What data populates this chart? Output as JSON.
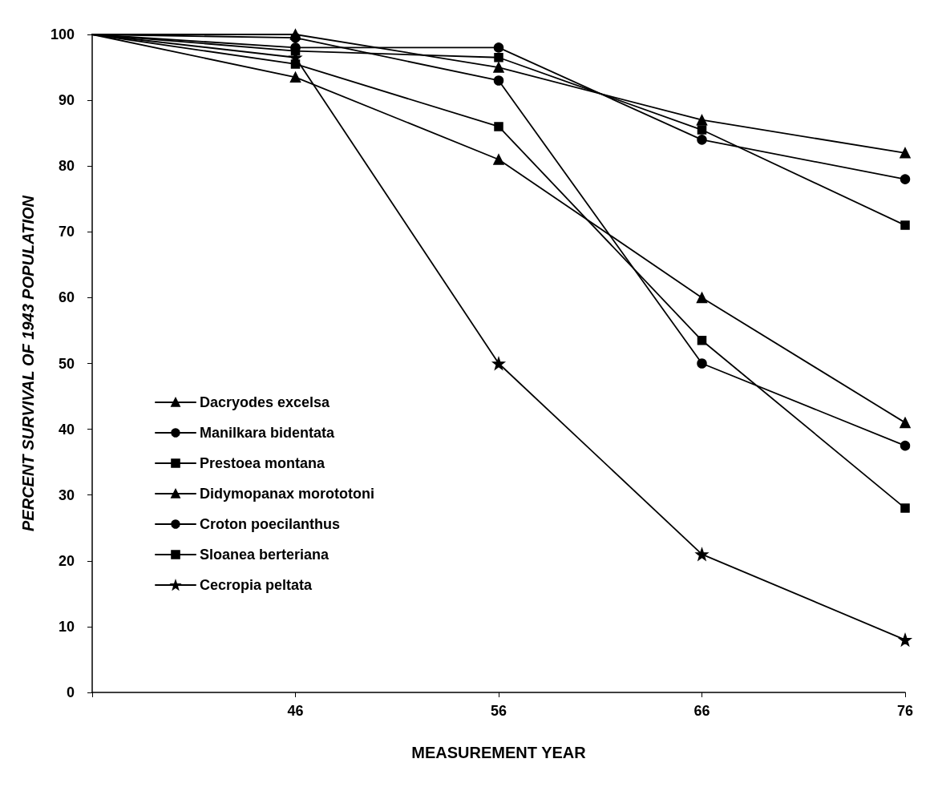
{
  "chart_data": {
    "type": "line",
    "xlabel": "MEASUREMENT YEAR",
    "ylabel": "PERCENT SURVIVAL OF 1943 POPULATION",
    "categories": [
      null,
      "46",
      "56",
      "66",
      "76"
    ],
    "ylim": [
      0,
      100
    ],
    "yticks": [
      0,
      10,
      20,
      30,
      40,
      50,
      60,
      70,
      80,
      90,
      100
    ],
    "grid": false,
    "legend": "bottom left",
    "line_style": "solid",
    "series": [
      {
        "name": "Dacryodes excelsa",
        "color": "#000000",
        "marker": "triangle",
        "values": [
          100,
          100,
          95,
          87,
          82
        ]
      },
      {
        "name": "Manilkara bidentata",
        "color": "#000000",
        "marker": "circle",
        "values": [
          100,
          98,
          98,
          84,
          78
        ]
      },
      {
        "name": "Prestoea montana",
        "color": "#000000",
        "marker": "square",
        "values": [
          100,
          97.5,
          96.5,
          85.5,
          71
        ]
      },
      {
        "name": "Didymopanax morototoni",
        "color": "#000000",
        "marker": "triangle",
        "values": [
          100,
          93.5,
          81,
          60,
          41
        ]
      },
      {
        "name": "Croton poecilanthus",
        "color": "#000000",
        "marker": "circle",
        "values": [
          100,
          99.5,
          93,
          50,
          37.5
        ]
      },
      {
        "name": "Sloanea berteriana",
        "color": "#000000",
        "marker": "square",
        "values": [
          100,
          95.5,
          86,
          53.5,
          28
        ]
      },
      {
        "name": "Cecropia peltata",
        "color": "#000000",
        "marker": "star",
        "values": [
          100,
          96.5,
          50,
          21,
          8
        ]
      }
    ]
  }
}
